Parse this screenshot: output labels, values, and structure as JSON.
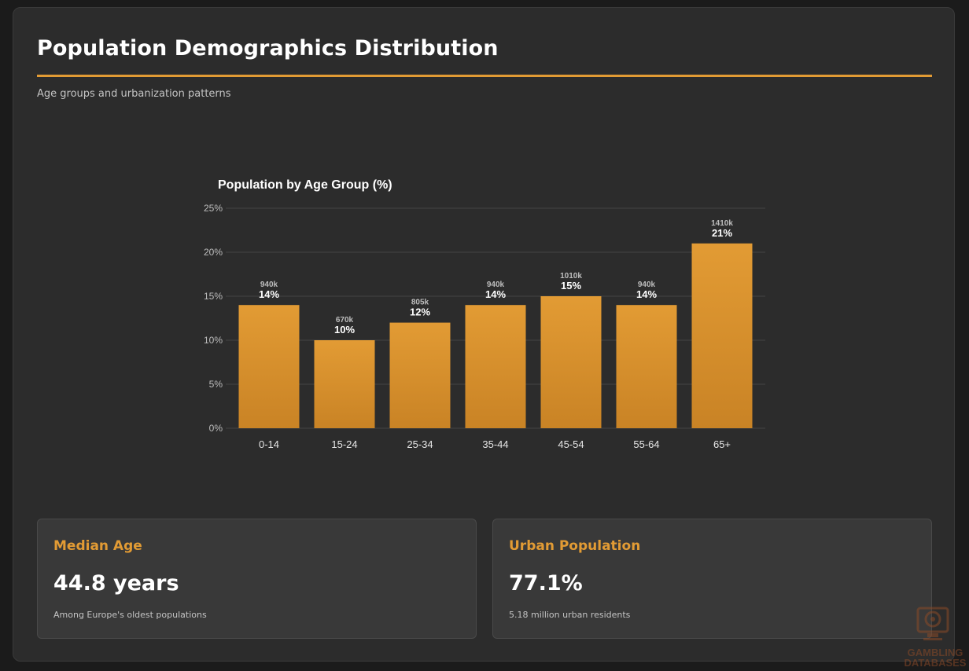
{
  "header": {
    "title": "Population Demographics Distribution",
    "subtitle": "Age groups and urbanization patterns"
  },
  "colors": {
    "accent": "#e29b34",
    "bar_top": "#e29b34",
    "bar_bottom": "#c98325",
    "card_bg": "#2c2c2c",
    "stat_bg": "#393939"
  },
  "chart_data": {
    "type": "bar",
    "title": "Population by Age Group (%)",
    "xlabel": "",
    "ylabel": "",
    "categories": [
      "0-14",
      "15-24",
      "25-34",
      "35-44",
      "45-54",
      "55-64",
      "65+"
    ],
    "values": [
      14,
      10,
      12,
      14,
      15,
      14,
      21
    ],
    "value_labels": [
      "14%",
      "10%",
      "12%",
      "14%",
      "15%",
      "14%",
      "21%"
    ],
    "count_labels": [
      "940k",
      "670k",
      "805k",
      "940k",
      "1010k",
      "940k",
      "1410k"
    ],
    "ylim": [
      0,
      25
    ],
    "yticks": [
      "0%",
      "5%",
      "10%",
      "15%",
      "20%",
      "25%"
    ],
    "ytick_values": [
      0,
      5,
      10,
      15,
      20,
      25
    ],
    "grid": true,
    "legend": "none"
  },
  "stats": [
    {
      "label": "Median Age",
      "value": "44.8 years",
      "note": "Among Europe's oldest populations"
    },
    {
      "label": "Urban Population",
      "value": "77.1%",
      "note": "5.18 million urban residents"
    }
  ],
  "watermark": {
    "icon": "monitor-chip-icon",
    "line1": "GAMBLING",
    "line2": "DATABASES"
  }
}
